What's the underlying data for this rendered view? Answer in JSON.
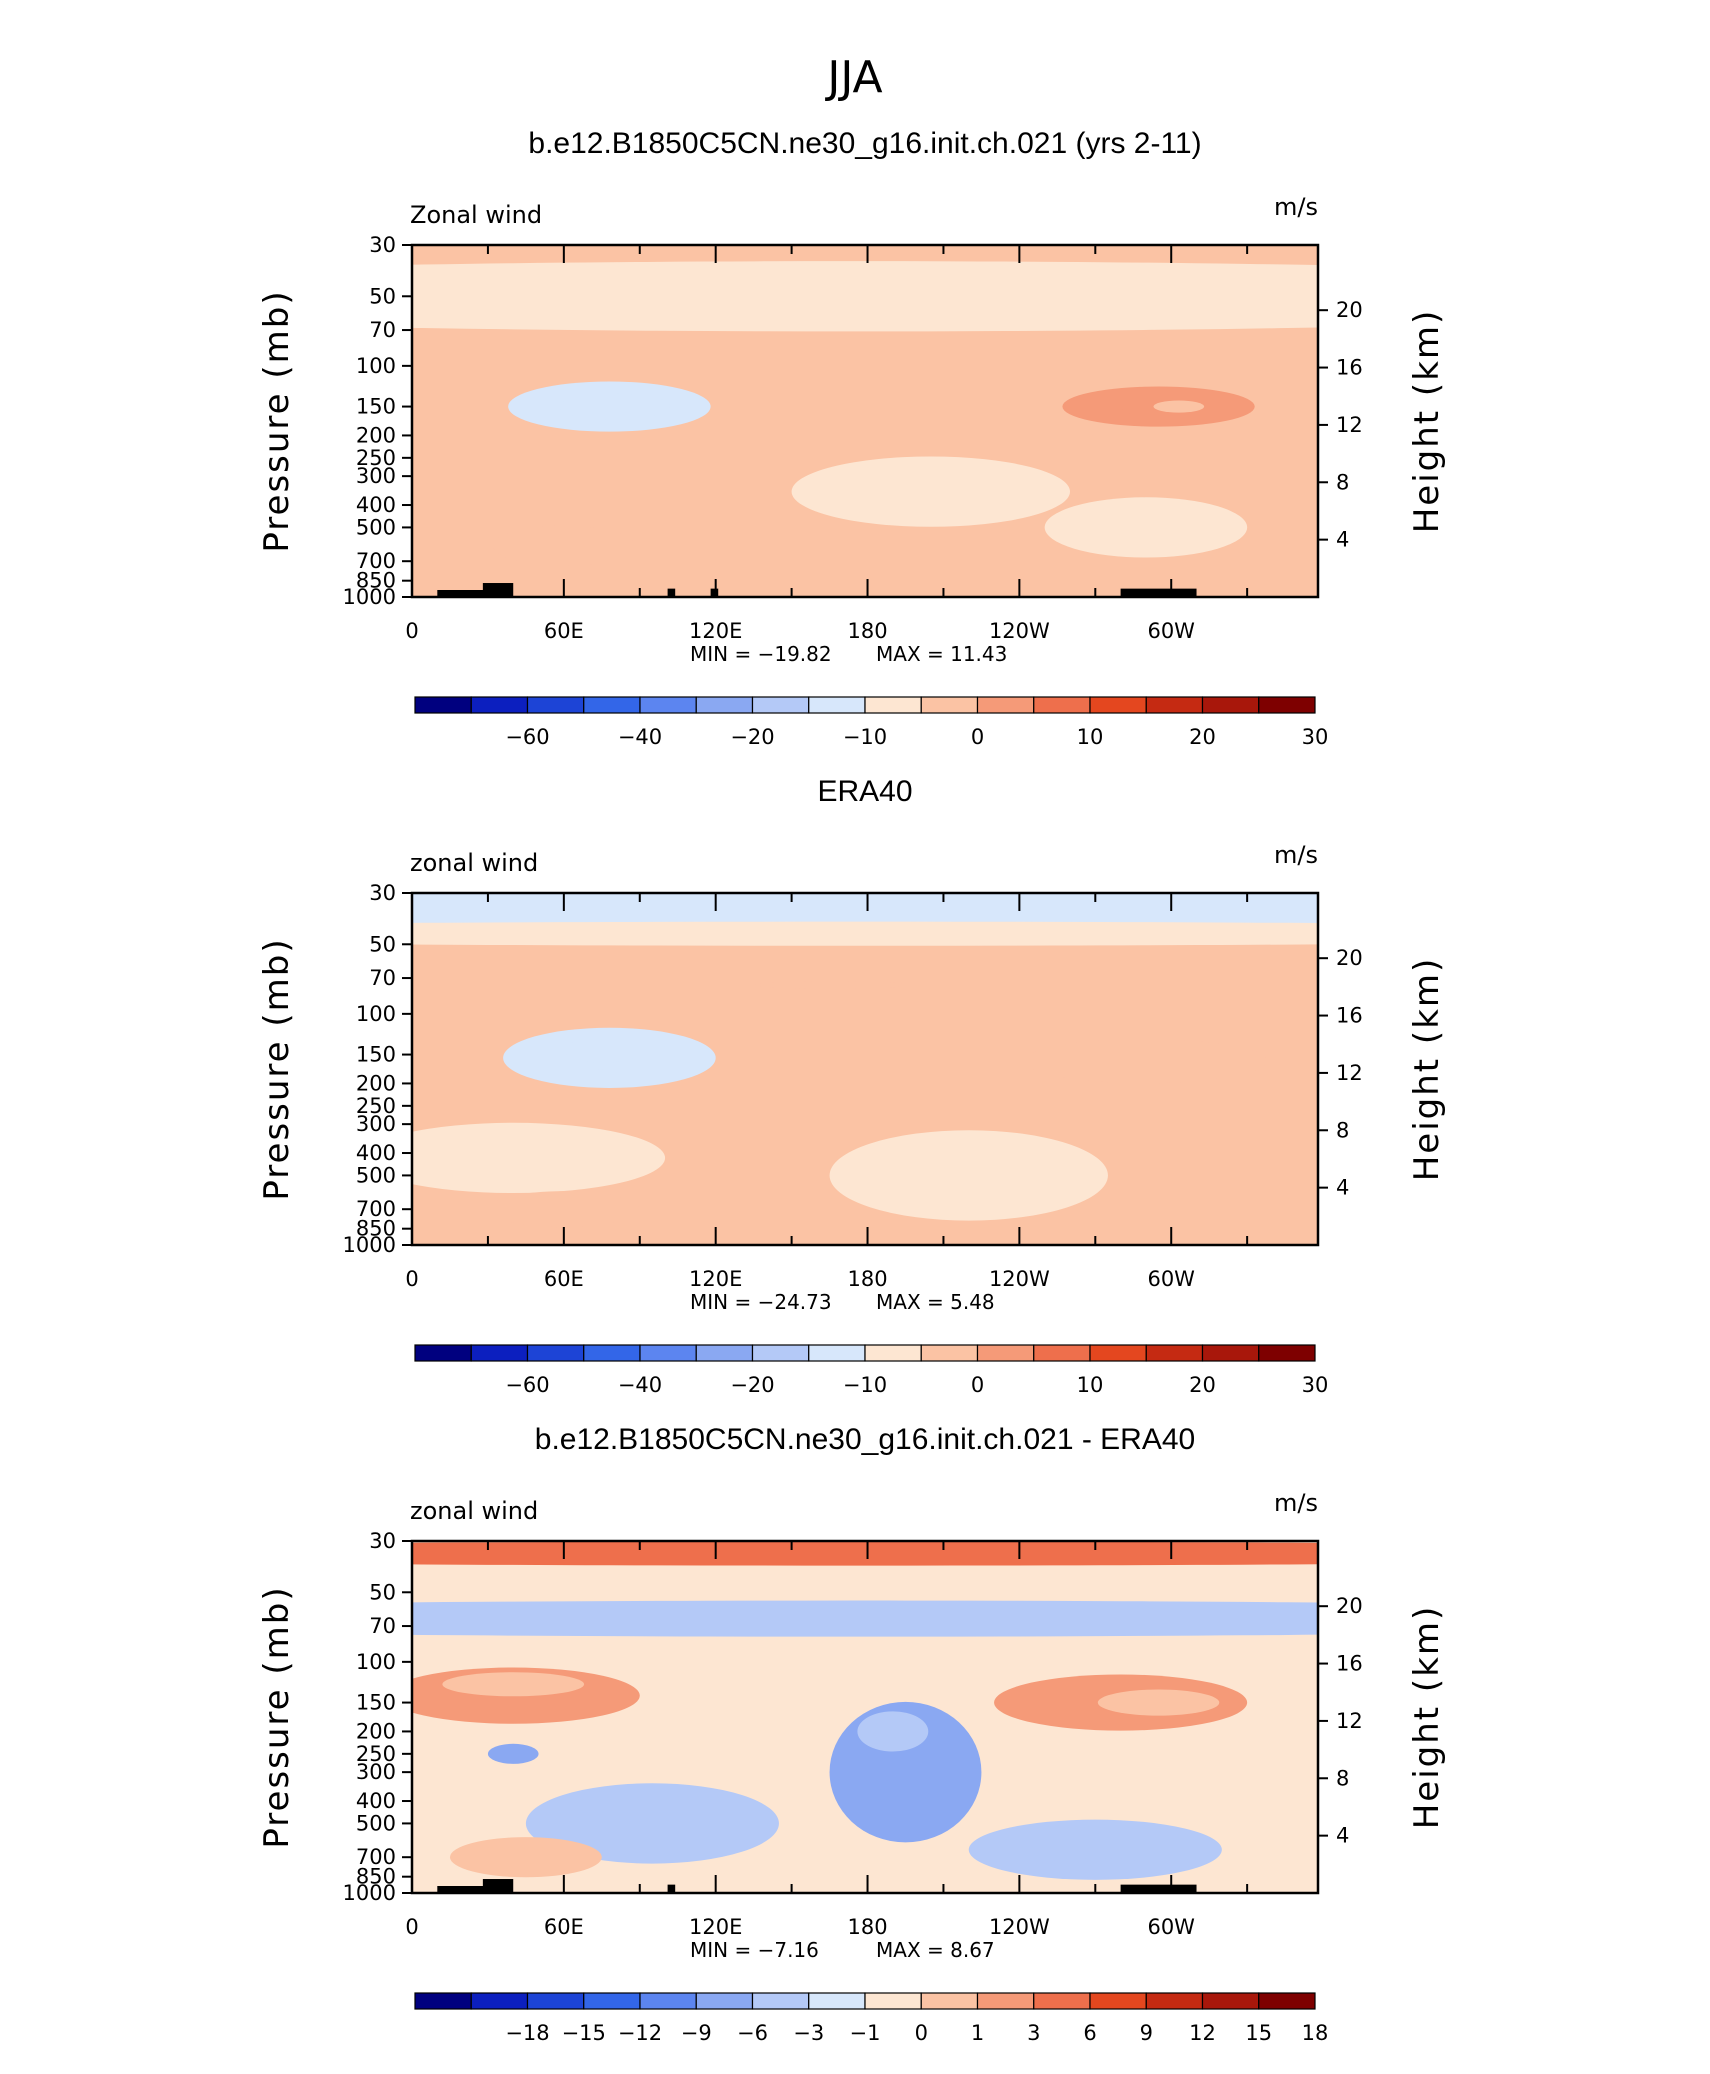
{
  "figure": {
    "title": "JJA"
  },
  "chart_data": [
    {
      "type": "heatmap",
      "title": "b.e12.B1850C5CN.ne30_g16.init.ch.021 (yrs 2-11)",
      "left_label": "Zonal wind",
      "units": "m/s",
      "ylabel": "Pressure (mb)",
      "y2label": "Height (km)",
      "x_ticks": [
        "0",
        "60E",
        "120E",
        "180",
        "120W",
        "60W"
      ],
      "x_tick_deg": [
        0,
        60,
        120,
        180,
        240,
        300
      ],
      "xlim_deg": [
        0,
        358
      ],
      "y_ticks": [
        "30",
        "50",
        "70",
        "100",
        "150",
        "200",
        "250",
        "300",
        "400",
        "500",
        "700",
        "850",
        "1000"
      ],
      "y_tick_mb": [
        30,
        50,
        70,
        100,
        150,
        200,
        250,
        300,
        400,
        500,
        700,
        850,
        1000
      ],
      "ylim_mb": [
        1000,
        30
      ],
      "y2_ticks": [
        "4",
        "8",
        "12",
        "16",
        "20"
      ],
      "y2_tick_km": [
        4,
        8,
        12,
        16,
        20
      ],
      "min_label": "MIN = −19.82",
      "min": -19.82,
      "max_label": "MAX =  11.43",
      "max": 11.43,
      "colorbar_ticks": [
        "−60",
        "−40",
        "−20",
        "−10",
        "0",
        "10",
        "20",
        "30"
      ],
      "colorbar_levels": [
        -70,
        -60,
        -50,
        -40,
        -30,
        -20,
        -15,
        -10,
        -5,
        0,
        5,
        10,
        15,
        20,
        25,
        30
      ],
      "colorbar_colors": [
        "#00007f",
        "#0c1fbf",
        "#1d44d6",
        "#3366e8",
        "#5c85f0",
        "#8aa8f2",
        "#b4c9f7",
        "#d7e7fb",
        "#fde6d2",
        "#fbc3a4",
        "#f59a78",
        "#ee6f4c",
        "#e4471f",
        "#c52a12",
        "#a8170b",
        "#7e0000"
      ],
      "field": [
        {
          "lon": 175,
          "p": 50,
          "w": 400,
          "h": 0.35,
          "v": -4
        },
        {
          "lon": 78,
          "p": 150,
          "w": 40,
          "h": 0.25,
          "v": -7
        },
        {
          "lon": 80,
          "p": 150,
          "w": 22,
          "h": 0.13,
          "v": -6
        },
        {
          "lon": 205,
          "p": 350,
          "w": 55,
          "h": 0.35,
          "v": -3
        },
        {
          "lon": 295,
          "p": 150,
          "w": 38,
          "h": 0.2,
          "v": 5
        },
        {
          "lon": 300,
          "p": 150,
          "w": 20,
          "h": 0.12,
          "v": 5
        },
        {
          "lon": 303,
          "p": 150,
          "w": 10,
          "h": 0.06,
          "v": 4
        },
        {
          "lon": 60,
          "p": 600,
          "w": 28,
          "h": 0.2,
          "v": 4
        },
        {
          "lon": 290,
          "p": 500,
          "w": 40,
          "h": 0.3,
          "v": -3
        },
        {
          "lon": 0,
          "p": 150,
          "w": 8,
          "h": 0.18,
          "v": 3
        }
      ],
      "topography": [
        [
          10,
          32,
          1000
        ],
        [
          28,
          40,
          870
        ],
        [
          101,
          104,
          920
        ],
        [
          118,
          121,
          920
        ],
        [
          280,
          310,
          920
        ]
      ]
    },
    {
      "type": "heatmap",
      "title": "ERA40",
      "left_label": "zonal wind",
      "units": "m/s",
      "ylabel": "Pressure (mb)",
      "y2label": "Height (km)",
      "x_ticks": [
        "0",
        "60E",
        "120E",
        "180",
        "120W",
        "60W"
      ],
      "x_tick_deg": [
        0,
        60,
        120,
        180,
        240,
        300
      ],
      "xlim_deg": [
        0,
        358
      ],
      "y_ticks": [
        "30",
        "50",
        "70",
        "100",
        "150",
        "200",
        "250",
        "300",
        "400",
        "500",
        "700",
        "850",
        "1000"
      ],
      "y_tick_mb": [
        30,
        50,
        70,
        100,
        150,
        200,
        250,
        300,
        400,
        500,
        700,
        850,
        1000
      ],
      "ylim_mb": [
        1000,
        30
      ],
      "y2_ticks": [
        "4",
        "8",
        "12",
        "16",
        "20"
      ],
      "y2_tick_km": [
        4,
        8,
        12,
        16,
        20
      ],
      "min_label": "MIN = −24.73",
      "min": -24.73,
      "max_label": "MAX =    5.48",
      "max": 5.48,
      "colorbar_ticks": [
        "−60",
        "−40",
        "−20",
        "−10",
        "0",
        "10",
        "20",
        "30"
      ],
      "colorbar_levels": [
        -70,
        -60,
        -50,
        -40,
        -30,
        -20,
        -15,
        -10,
        -5,
        0,
        5,
        10,
        15,
        20,
        25,
        30
      ],
      "colorbar_colors": [
        "#00007f",
        "#0c1fbf",
        "#1d44d6",
        "#3366e8",
        "#5c85f0",
        "#8aa8f2",
        "#b4c9f7",
        "#d7e7fb",
        "#fde6d2",
        "#fbc3a4",
        "#f59a78",
        "#ee6f4c",
        "#e4471f",
        "#c52a12",
        "#a8170b",
        "#7e0000"
      ],
      "field": [
        {
          "lon": 175,
          "p": 36,
          "w": 400,
          "h": 0.2,
          "v": -9
        },
        {
          "lon": 175,
          "p": 45,
          "w": 400,
          "h": 0.12,
          "v": -3
        },
        {
          "lon": 78,
          "p": 155,
          "w": 42,
          "h": 0.3,
          "v": -8
        },
        {
          "lon": 78,
          "p": 150,
          "w": 26,
          "h": 0.15,
          "v": -9
        },
        {
          "lon": 75,
          "p": 150,
          "w": 14,
          "h": 0.08,
          "v": -6
        },
        {
          "lon": 220,
          "p": 500,
          "w": 55,
          "h": 0.45,
          "v": -4
        },
        {
          "lon": 40,
          "p": 420,
          "w": 60,
          "h": 0.35,
          "v": -3
        },
        {
          "lon": 290,
          "p": 160,
          "w": 48,
          "h": 0.22,
          "v": 4
        },
        {
          "lon": 60,
          "p": 700,
          "w": 30,
          "h": 0.18,
          "v": 4
        },
        {
          "lon": 165,
          "p": 75,
          "w": 30,
          "h": 0.04,
          "v": 3
        }
      ],
      "topography": []
    },
    {
      "type": "heatmap",
      "title": "b.e12.B1850C5CN.ne30_g16.init.ch.021 - ERA40",
      "left_label": "zonal wind",
      "units": "m/s",
      "ylabel": "Pressure (mb)",
      "y2label": "Height (km)",
      "x_ticks": [
        "0",
        "60E",
        "120E",
        "180",
        "120W",
        "60W"
      ],
      "x_tick_deg": [
        0,
        60,
        120,
        180,
        240,
        300
      ],
      "xlim_deg": [
        0,
        358
      ],
      "y_ticks": [
        "30",
        "50",
        "70",
        "100",
        "150",
        "200",
        "250",
        "300",
        "400",
        "500",
        "700",
        "850",
        "1000"
      ],
      "y_tick_mb": [
        30,
        50,
        70,
        100,
        150,
        200,
        250,
        300,
        400,
        500,
        700,
        850,
        1000
      ],
      "ylim_mb": [
        1000,
        30
      ],
      "y2_ticks": [
        "4",
        "8",
        "12",
        "16",
        "20"
      ],
      "y2_tick_km": [
        4,
        8,
        12,
        16,
        20
      ],
      "min_label": "MIN =   −7.16",
      "min": -7.16,
      "max_label": "MAX =     8.67",
      "max": 8.67,
      "colorbar_ticks": [
        "−18",
        "−15",
        "−12",
        "−9",
        "−6",
        "−3",
        "−1",
        "0",
        "1",
        "3",
        "6",
        "9",
        "12",
        "15",
        "18"
      ],
      "colorbar_levels": [
        -21,
        -18,
        -15,
        -12,
        -9,
        -6,
        -3,
        -1,
        0,
        1,
        3,
        6,
        9,
        12,
        15,
        18
      ],
      "colorbar_colors": [
        "#00007f",
        "#0c1fbf",
        "#1d44d6",
        "#3366e8",
        "#5c85f0",
        "#8aa8f2",
        "#b4c9f7",
        "#d7e7fb",
        "#fde6d2",
        "#fbc3a4",
        "#f59a78",
        "#ee6f4c",
        "#e4471f",
        "#c52a12",
        "#a8170b",
        "#7e0000"
      ],
      "field": [
        {
          "lon": 175,
          "p": 34,
          "w": 400,
          "h": 0.12,
          "v": 6
        },
        {
          "lon": 175,
          "p": 65,
          "w": 400,
          "h": 0.18,
          "v": -3
        },
        {
          "lon": 40,
          "p": 140,
          "w": 50,
          "h": 0.28,
          "v": 5
        },
        {
          "lon": 40,
          "p": 125,
          "w": 28,
          "h": 0.12,
          "v": 2
        },
        {
          "lon": 280,
          "p": 150,
          "w": 50,
          "h": 0.28,
          "v": 5
        },
        {
          "lon": 295,
          "p": 150,
          "w": 24,
          "h": 0.13,
          "v": 2
        },
        {
          "lon": 195,
          "p": 300,
          "w": 30,
          "h": 0.7,
          "v": -4
        },
        {
          "lon": 190,
          "p": 200,
          "w": 14,
          "h": 0.2,
          "v": -2
        },
        {
          "lon": 95,
          "p": 500,
          "w": 50,
          "h": 0.4,
          "v": -3
        },
        {
          "lon": 270,
          "p": 650,
          "w": 50,
          "h": 0.3,
          "v": -3
        },
        {
          "lon": 270,
          "p": 780,
          "w": 25,
          "h": 0.1,
          "v": -2
        },
        {
          "lon": 40,
          "p": 250,
          "w": 10,
          "h": 0.1,
          "v": -4
        },
        {
          "lon": 45,
          "p": 700,
          "w": 30,
          "h": 0.2,
          "v": 2
        }
      ],
      "topography": [
        [
          10,
          32,
          1000
        ],
        [
          28,
          40,
          870
        ],
        [
          101,
          104,
          920
        ],
        [
          280,
          310,
          920
        ]
      ]
    }
  ]
}
